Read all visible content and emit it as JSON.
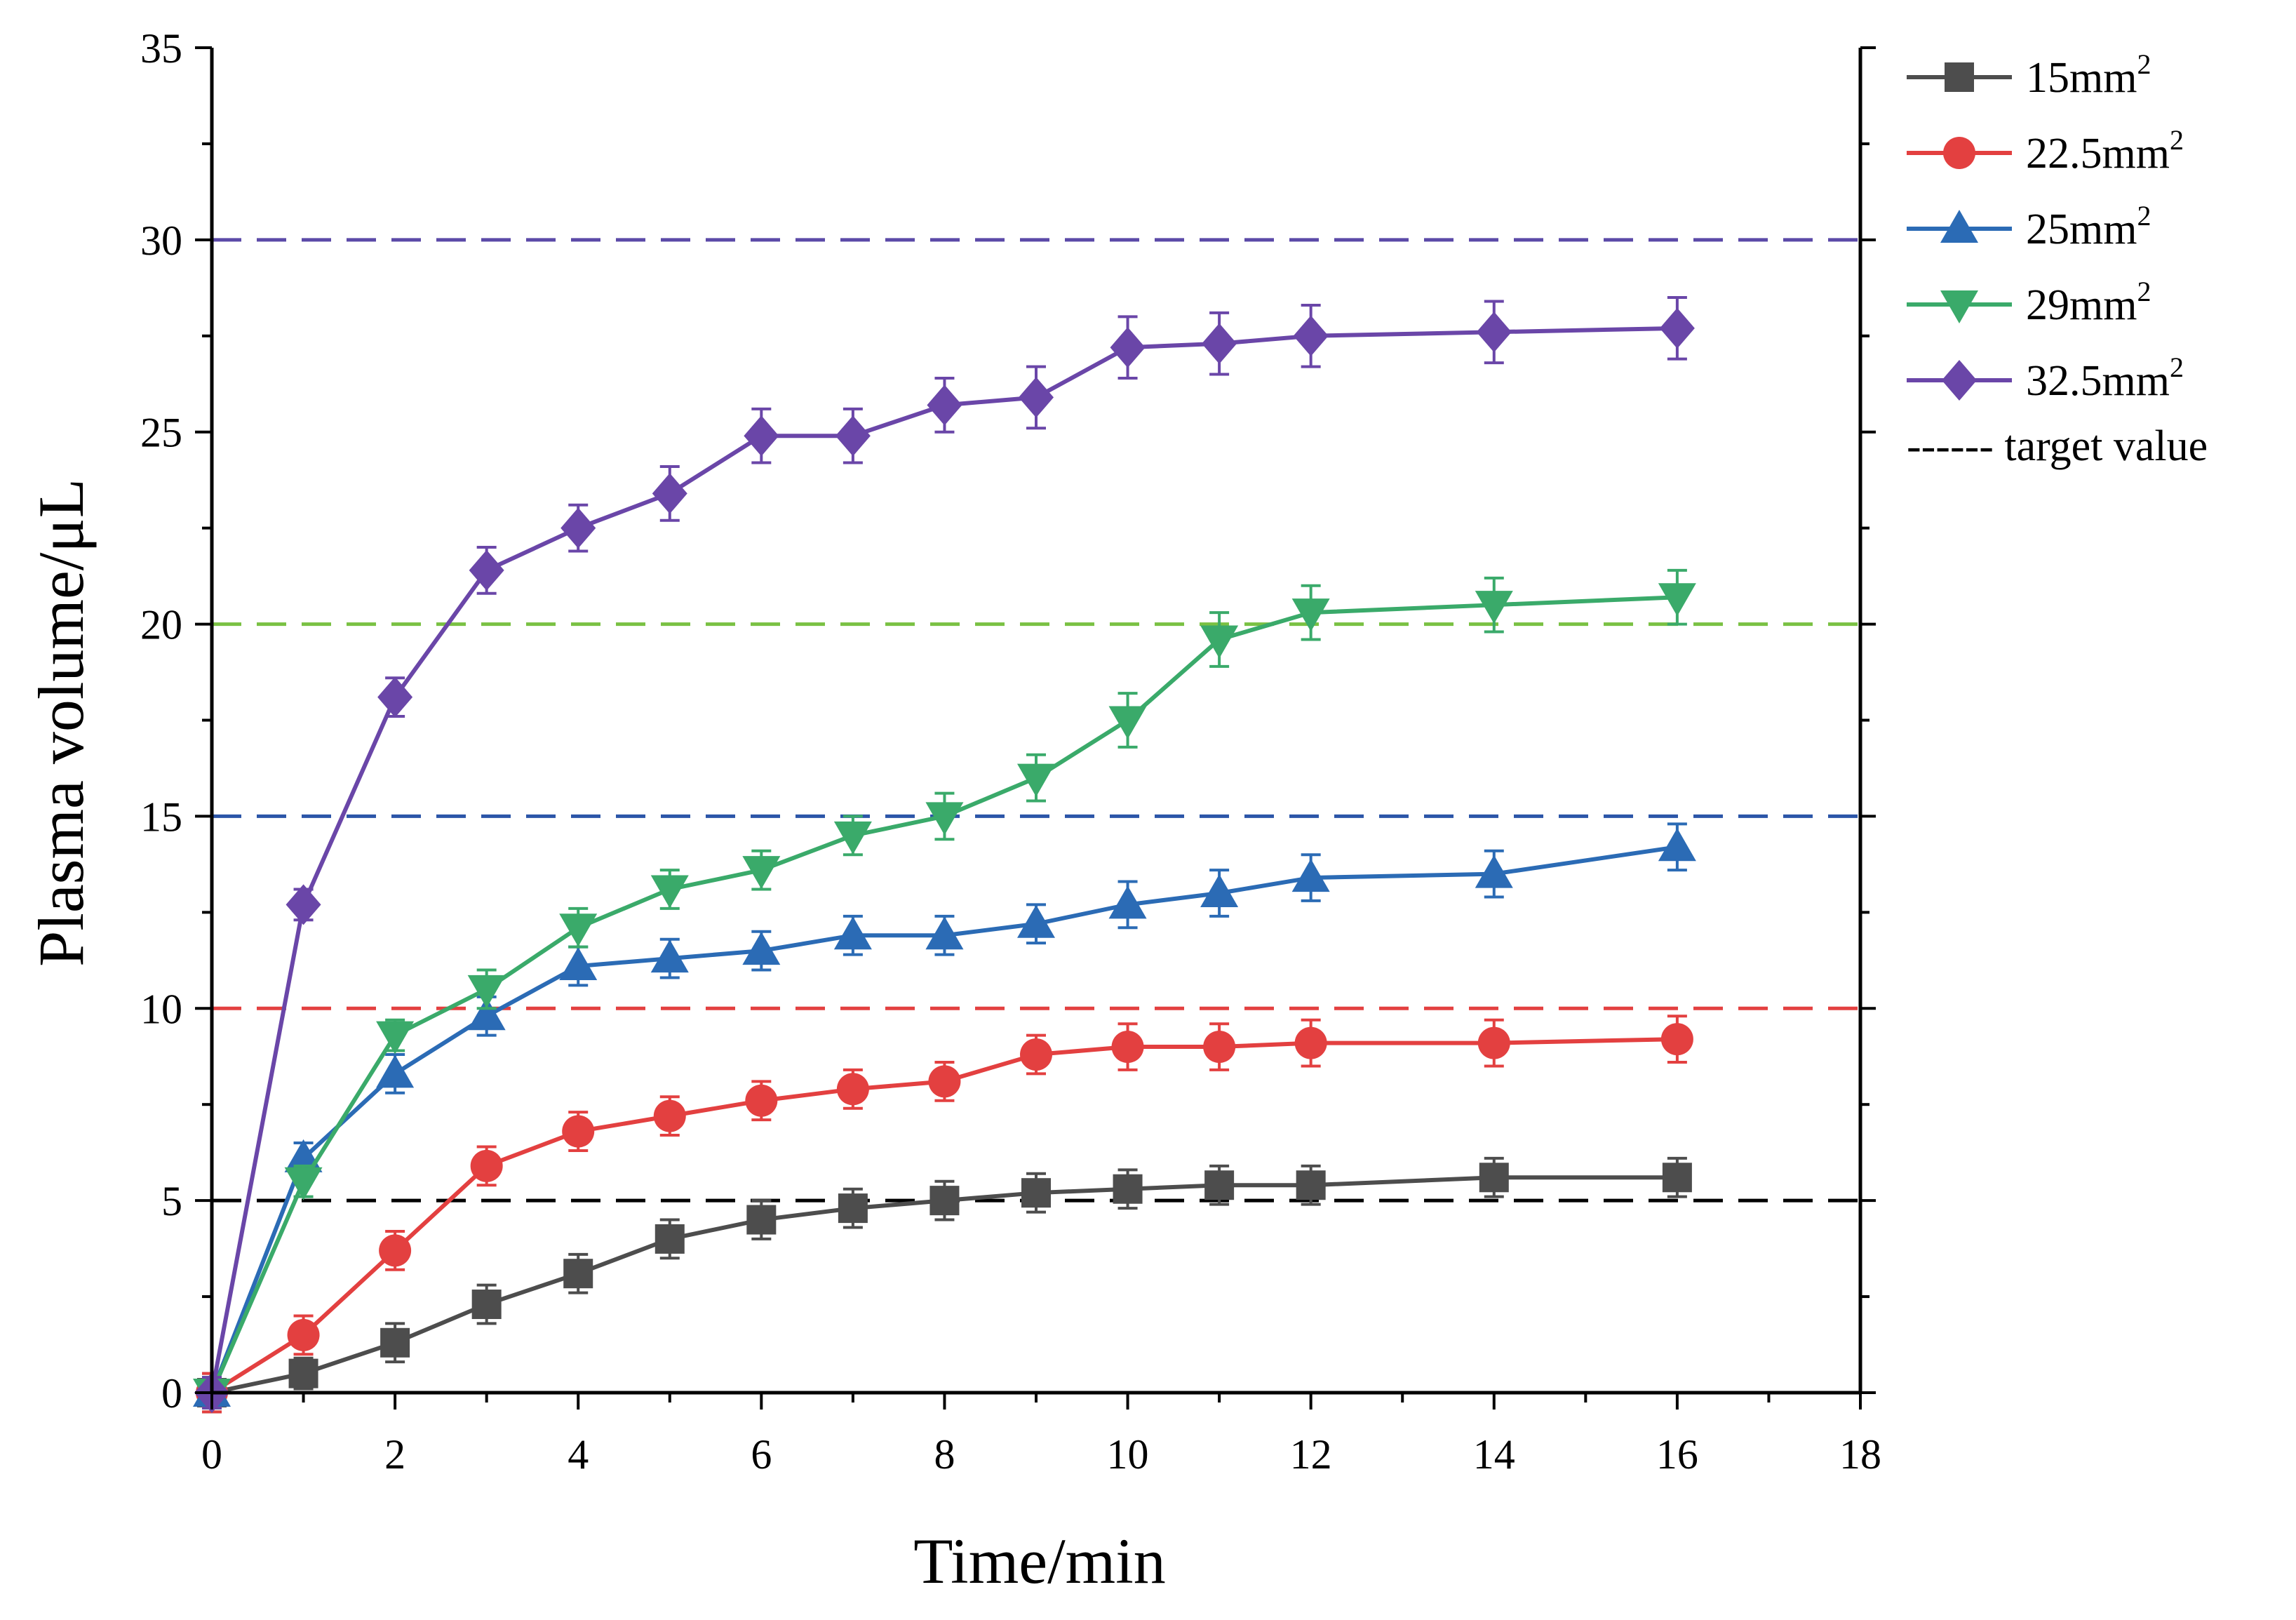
{
  "chart_data": {
    "type": "line",
    "title": "",
    "xlabel": "Time/min",
    "ylabel": "Plasma volume/μL",
    "xlim": [
      0,
      18
    ],
    "ylim": [
      0,
      35
    ],
    "xticks": [
      0,
      2,
      4,
      6,
      8,
      10,
      12,
      14,
      16,
      18
    ],
    "yticks": [
      0,
      5,
      10,
      15,
      20,
      25,
      30,
      35
    ],
    "xtick_labels": [
      "0",
      "2",
      "4",
      "6",
      "8",
      "10",
      "12",
      "14",
      "16",
      "18"
    ],
    "ytick_labels": [
      "0",
      "5",
      "10",
      "15",
      "20",
      "25",
      "30",
      "35"
    ],
    "grid": false,
    "legend_position": "right-outside-top",
    "x": [
      0,
      1,
      2,
      3,
      4,
      5,
      6,
      7,
      8,
      9,
      10,
      11,
      12,
      14,
      16
    ],
    "series": [
      {
        "name": "15mm",
        "name_sup": "2",
        "marker": "square",
        "color": "#4d4d4d",
        "values": [
          0,
          0.5,
          1.3,
          2.3,
          3.1,
          4.0,
          4.5,
          4.8,
          5.0,
          5.2,
          5.3,
          5.4,
          5.4,
          5.6,
          5.6
        ],
        "errors": [
          0.5,
          0.4,
          0.5,
          0.5,
          0.5,
          0.5,
          0.5,
          0.5,
          0.5,
          0.5,
          0.5,
          0.5,
          0.5,
          0.5,
          0.5
        ]
      },
      {
        "name": "22.5mm",
        "name_sup": "2",
        "marker": "circle",
        "color": "#e34040",
        "values": [
          0,
          1.5,
          3.7,
          5.9,
          6.8,
          7.2,
          7.6,
          7.9,
          8.1,
          8.8,
          9.0,
          9.0,
          9.1,
          9.1,
          9.2
        ],
        "errors": [
          0.5,
          0.5,
          0.5,
          0.5,
          0.5,
          0.5,
          0.5,
          0.5,
          0.5,
          0.5,
          0.6,
          0.6,
          0.6,
          0.6,
          0.6
        ]
      },
      {
        "name": "25mm",
        "name_sup": "2",
        "marker": "triangle-up",
        "color": "#2b6bb5",
        "values": [
          0,
          6.1,
          8.3,
          9.8,
          11.1,
          11.3,
          11.5,
          11.9,
          11.9,
          12.2,
          12.7,
          13.0,
          13.4,
          13.5,
          14.2
        ],
        "errors": [
          0.4,
          0.4,
          0.5,
          0.5,
          0.5,
          0.5,
          0.5,
          0.5,
          0.5,
          0.5,
          0.6,
          0.6,
          0.6,
          0.6,
          0.6
        ]
      },
      {
        "name": "29mm",
        "name_sup": "2",
        "marker": "triangle-down",
        "color": "#3aaa6a",
        "values": [
          0,
          5.5,
          9.3,
          10.5,
          12.1,
          13.1,
          13.6,
          14.5,
          15.0,
          16.0,
          17.5,
          19.6,
          20.3,
          20.5,
          20.7
        ],
        "errors": [
          0.4,
          0.4,
          0.4,
          0.5,
          0.5,
          0.5,
          0.5,
          0.5,
          0.6,
          0.6,
          0.7,
          0.7,
          0.7,
          0.7,
          0.7
        ]
      },
      {
        "name": "32.5mm",
        "name_sup": "2",
        "marker": "diamond",
        "color": "#6a46a8",
        "values": [
          0,
          12.7,
          18.1,
          21.4,
          22.5,
          23.4,
          24.9,
          24.9,
          25.7,
          25.9,
          27.2,
          27.3,
          27.5,
          27.6,
          27.7
        ],
        "errors": [
          0.4,
          0.4,
          0.5,
          0.6,
          0.6,
          0.7,
          0.7,
          0.7,
          0.7,
          0.8,
          0.8,
          0.8,
          0.8,
          0.8,
          0.8
        ]
      }
    ],
    "reference_lines": [
      {
        "y": 5,
        "color": "#000000"
      },
      {
        "y": 10,
        "color": "#e34040"
      },
      {
        "y": 15,
        "color": "#2b55a8"
      },
      {
        "y": 20,
        "color": "#7ac143"
      },
      {
        "y": 30,
        "color": "#5b4aa8"
      }
    ],
    "reference_label": "------ target value"
  }
}
